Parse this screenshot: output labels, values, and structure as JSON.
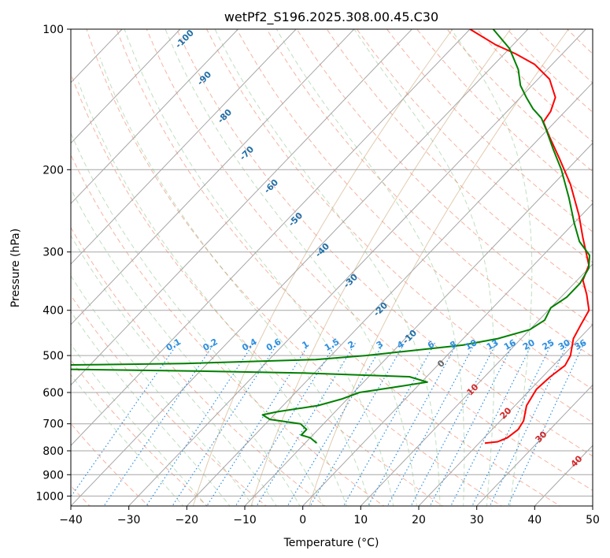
{
  "chart_data": {
    "type": "line",
    "title": "wetPf2_S196.2025.308.00.45.C30",
    "xlabel": "Temperature (°C)",
    "ylabel": "Pressure (hPa)",
    "xlim": [
      -40,
      50
    ],
    "ylim": [
      1050,
      100
    ],
    "y_scale": "log",
    "skew": true,
    "grid": true,
    "x_ticks": [
      -40,
      -30,
      -20,
      -10,
      0,
      10,
      20,
      30,
      40,
      50
    ],
    "y_ticks": [
      1000,
      900,
      800,
      700,
      600,
      500,
      400,
      300,
      200,
      100
    ],
    "series": [
      {
        "color": "#ff0000",
        "points": [
          {
            "p": 770,
            "t": 21
          },
          {
            "p": 765,
            "t": 23
          },
          {
            "p": 750,
            "t": 24
          },
          {
            "p": 720,
            "t": 24.5
          },
          {
            "p": 690,
            "t": 24
          },
          {
            "p": 640,
            "t": 22
          },
          {
            "p": 590,
            "t": 21
          },
          {
            "p": 555,
            "t": 21.3
          },
          {
            "p": 525,
            "t": 22
          },
          {
            "p": 500,
            "t": 21.3
          },
          {
            "p": 460,
            "t": 19
          },
          {
            "p": 430,
            "t": 18
          },
          {
            "p": 400,
            "t": 17
          },
          {
            "p": 370,
            "t": 14
          },
          {
            "p": 345,
            "t": 11
          },
          {
            "p": 320,
            "t": 9.5
          },
          {
            "p": 280,
            "t": 4
          },
          {
            "p": 250,
            "t": -0.5
          },
          {
            "p": 215,
            "t": -7
          },
          {
            "p": 190,
            "t": -13
          },
          {
            "p": 170,
            "t": -18.5
          },
          {
            "p": 158,
            "t": -22
          },
          {
            "p": 150,
            "t": -22.5
          },
          {
            "p": 140,
            "t": -24
          },
          {
            "p": 128,
            "t": -28
          },
          {
            "p": 119,
            "t": -33
          },
          {
            "p": 113,
            "t": -38
          },
          {
            "p": 108,
            "t": -43
          },
          {
            "p": 100,
            "t": -50
          }
        ]
      },
      {
        "color": "#008000",
        "points": [
          {
            "p": 770,
            "t": -8
          },
          {
            "p": 750,
            "t": -10
          },
          {
            "p": 740,
            "t": -12
          },
          {
            "p": 720,
            "t": -12
          },
          {
            "p": 700,
            "t": -14
          },
          {
            "p": 685,
            "t": -20
          },
          {
            "p": 670,
            "t": -22
          },
          {
            "p": 660,
            "t": -20
          },
          {
            "p": 640,
            "t": -14
          },
          {
            "p": 620,
            "t": -11
          },
          {
            "p": 600,
            "t": -9
          },
          {
            "p": 585,
            "t": -4
          },
          {
            "p": 570,
            "t": 1
          },
          {
            "p": 555,
            "t": -3
          },
          {
            "p": 545,
            "t": -22
          },
          {
            "p": 540,
            "t": -40
          },
          {
            "p": 535,
            "t": -64
          },
          {
            "p": 525,
            "t": -70
          },
          {
            "p": 520,
            "t": -44
          },
          {
            "p": 510,
            "t": -22
          },
          {
            "p": 500,
            "t": -14
          },
          {
            "p": 490,
            "t": -8
          },
          {
            "p": 475,
            "t": 1
          },
          {
            "p": 460,
            "t": 6
          },
          {
            "p": 440,
            "t": 10
          },
          {
            "p": 420,
            "t": 11
          },
          {
            "p": 395,
            "t": 10
          },
          {
            "p": 375,
            "t": 11
          },
          {
            "p": 350,
            "t": 11
          },
          {
            "p": 325,
            "t": 10
          },
          {
            "p": 305,
            "t": 8
          },
          {
            "p": 285,
            "t": 4
          },
          {
            "p": 260,
            "t": 0
          },
          {
            "p": 230,
            "t": -5
          },
          {
            "p": 200,
            "t": -11
          },
          {
            "p": 180,
            "t": -16
          },
          {
            "p": 165,
            "t": -20
          },
          {
            "p": 155,
            "t": -23
          },
          {
            "p": 148,
            "t": -26
          },
          {
            "p": 140,
            "t": -29
          },
          {
            "p": 132,
            "t": -32
          },
          {
            "p": 122,
            "t": -35
          },
          {
            "p": 110,
            "t": -40
          },
          {
            "p": 100,
            "t": -46
          }
        ]
      }
    ],
    "dry_adiabat_labels": [
      "-100",
      "-90",
      "-80",
      "-70",
      "-60",
      "-50",
      "-40",
      "-30",
      "-20",
      "-10",
      "0"
    ],
    "moist_adiabat_labels": [
      "10",
      "20",
      "30",
      "40"
    ],
    "mixing_ratio_labels": [
      "0.1",
      "0.2",
      "0.4",
      "0.6",
      "1",
      "1.5",
      "2",
      "3",
      "4",
      "6",
      "8",
      "10",
      "13",
      "16",
      "20",
      "25",
      "30",
      "36"
    ],
    "colors": {
      "isotherm": "#a6a6a6",
      "isobar": "#a6a6a6",
      "dry_adiabat": "#f08060",
      "moist_adiabat": "#60b060",
      "mixing_ratio": "#2e8fe0",
      "theta_e": "#c8a070"
    }
  }
}
